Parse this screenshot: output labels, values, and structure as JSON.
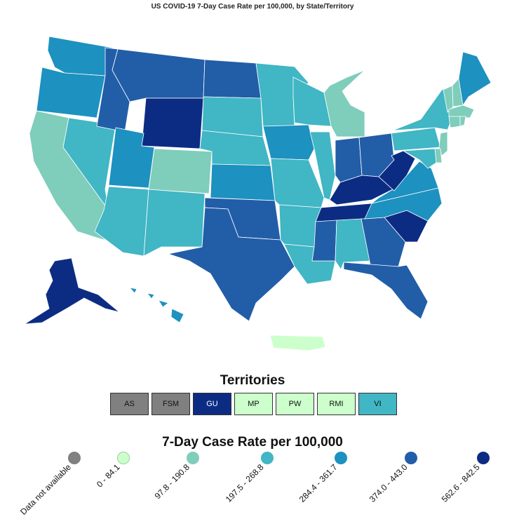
{
  "title": "US COVID-19 7-Day Case Rate per 100,000, by State/Territory",
  "colors": {
    "na": "#808080",
    "c1": "#ccffcc",
    "c2": "#7fcdbb",
    "c3": "#41b6c4",
    "c4": "#1d91c0",
    "c5": "#225ea8",
    "c6": "#0c2c84",
    "stroke": "#ffffff"
  },
  "territories": {
    "title": "Territories",
    "items": [
      {
        "label": "AS",
        "color": "#808080"
      },
      {
        "label": "FSM",
        "color": "#808080"
      },
      {
        "label": "GU",
        "color": "#0c2c84"
      },
      {
        "label": "MP",
        "color": "#ccffcc"
      },
      {
        "label": "PW",
        "color": "#ccffcc"
      },
      {
        "label": "RMI",
        "color": "#ccffcc"
      },
      {
        "label": "VI",
        "color": "#41b6c4"
      }
    ]
  },
  "legend": {
    "title": "7-Day Case Rate per 100,000",
    "items": [
      {
        "label": "Data not available",
        "color": "#808080"
      },
      {
        "label": "0 - 84.1",
        "color": "#ccffcc"
      },
      {
        "label": "97.8 - 190.8",
        "color": "#7fcdbb"
      },
      {
        "label": "197.5 - 268.8",
        "color": "#41b6c4"
      },
      {
        "label": "284.4 - 361.7",
        "color": "#1d91c0"
      },
      {
        "label": "374.0 - 443.0",
        "color": "#225ea8"
      },
      {
        "label": "562.6 - 842.5",
        "color": "#0c2c84"
      }
    ]
  }
}
